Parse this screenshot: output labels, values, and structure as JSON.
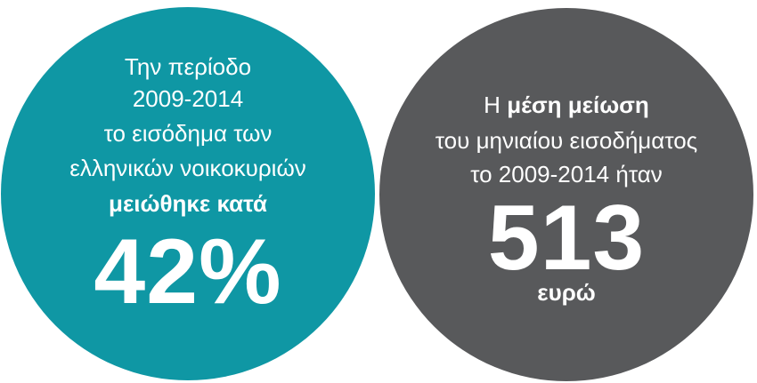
{
  "left_circle": {
    "lines": [
      "Την περίοδο",
      "2009-2014",
      "το εισόδημα των",
      "ελληνικών νοικοκυριών"
    ],
    "emphasis": "μειώθηκε κατά",
    "figure": "42%"
  },
  "right_circle": {
    "intro": "Η",
    "emphasis": "μέση μείωση",
    "lines": [
      "του μηνιαίου εισοδήματος",
      "το 2009-2014 ήταν"
    ],
    "figure": "513",
    "unit": "ευρώ"
  }
}
